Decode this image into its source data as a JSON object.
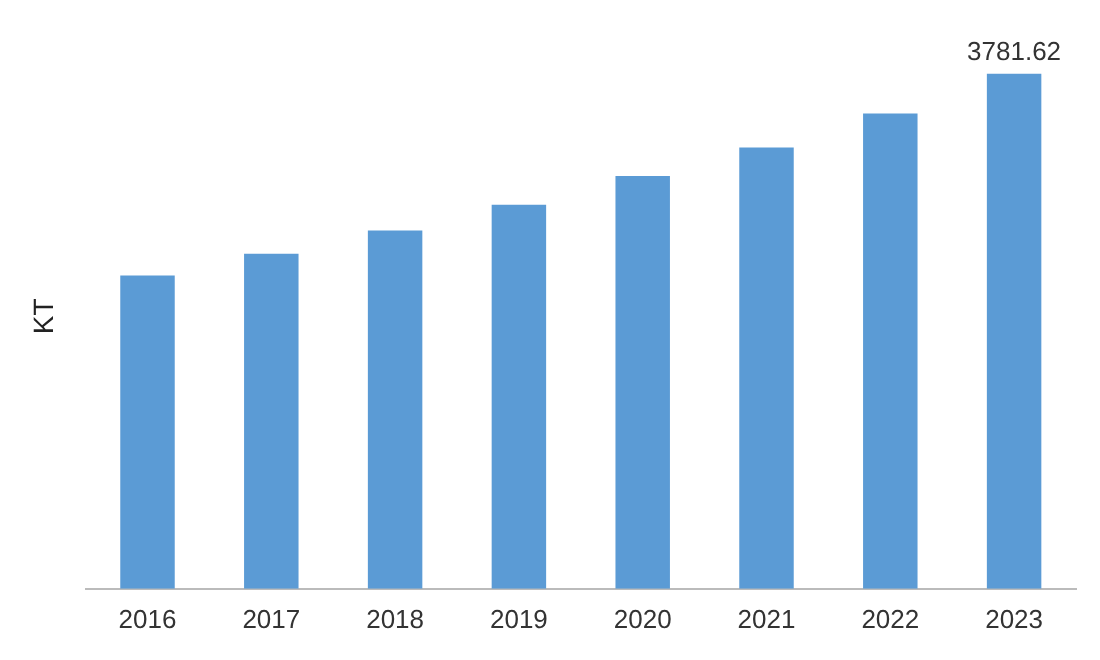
{
  "chart_data": {
    "type": "bar",
    "ylabel": "KT",
    "categories": [
      "2016",
      "2017",
      "2018",
      "2019",
      "2020",
      "2021",
      "2022",
      "2023"
    ],
    "values": [
      2300,
      2460,
      2630,
      2820,
      3030,
      3240,
      3490,
      3781.62
    ],
    "value_labels": [
      null,
      null,
      null,
      null,
      null,
      null,
      null,
      "3781.62"
    ],
    "color": "#5b9bd5",
    "grid": false,
    "legend": false
  }
}
